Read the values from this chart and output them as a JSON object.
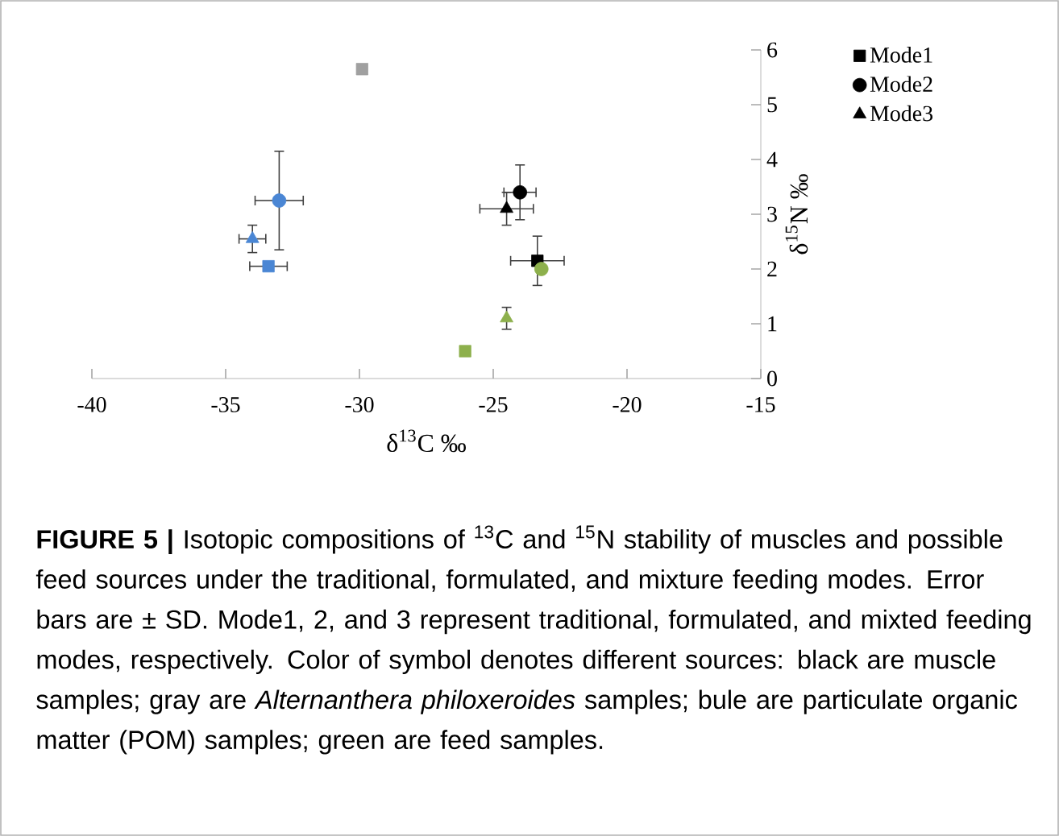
{
  "chart_data": {
    "type": "scatter",
    "xlabel": "δ$^{13}$C ‰",
    "ylabel": "δ$^{15}$N ‰",
    "xlim": [
      -40,
      -15
    ],
    "xticks": [
      -40,
      -35,
      -30,
      -25,
      -20,
      -15
    ],
    "ylim": [
      0,
      6
    ],
    "yticks": [
      0,
      1,
      2,
      3,
      4,
      5,
      6
    ],
    "legend": "top right",
    "series": [
      {
        "name": "Mode1",
        "marker": "square",
        "color": "#000000",
        "x": [
          -23.35,
          -33.4,
          -26.05,
          -29.9
        ],
        "values": [
          2.15,
          2.05,
          0.5,
          5.65
        ],
        "xerrors": [
          1.0,
          0.7,
          null,
          null
        ],
        "errors": [
          0.45,
          null,
          null,
          null
        ],
        "colors": [
          "#000000",
          "#4a86d4",
          "#8db04c",
          "#a0a0a0"
        ]
      },
      {
        "name": "Mode2",
        "marker": "circle",
        "color": "#000000",
        "x": [
          -24.0,
          -33.0,
          -23.2
        ],
        "values": [
          3.4,
          3.25,
          2.0
        ],
        "xerrors": [
          0.6,
          0.9,
          null
        ],
        "errors": [
          0.5,
          0.9,
          null
        ],
        "colors": [
          "#000000",
          "#4a86d4",
          "#8db04c"
        ]
      },
      {
        "name": "Mode3",
        "marker": "triangle",
        "color": "#000000",
        "x": [
          -24.5,
          -34.0,
          -24.5
        ],
        "values": [
          3.1,
          2.55,
          1.1
        ],
        "xerrors": [
          1.0,
          0.5,
          null
        ],
        "errors": [
          0.3,
          0.25,
          0.2
        ],
        "colors": [
          "#000000",
          "#4a86d4",
          "#8db04c"
        ]
      }
    ],
    "annotations": [
      "**FIGURE 5 |** Isotopic compositions of $^{13}$C and $^{15}$N stability of muscles and possible feed sources under the traditional, formulated, and mixture feeding modes. Error bars are ± SD. Mode1, 2, and 3 represent traditional, formulated, and mixted feeding modes, respectively. Color of symbol denotes different sources: black are muscle samples; gray are *Alternanthera philoxeroides* samples; bule are particulate organic matter (POM) samples; green are feed samples."
    ]
  }
}
